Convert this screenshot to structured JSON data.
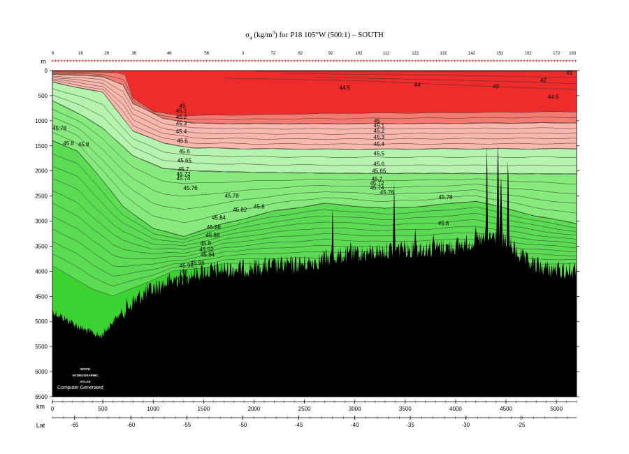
{
  "chart_data": {
    "type": "area",
    "title": "σ₄ (kg/m³) for P18 105°W (500:1) – SOUTH",
    "title_parts": {
      "sym": "σ",
      "sub": "4",
      "rest_pre": " (kg/m",
      "sup": "3",
      "rest_post": ") for P18 105°W (500:1) – SOUTH"
    },
    "xlabel": "km",
    "ylabel": "m",
    "lat_label": "Lat",
    "xlim": [
      0,
      5200
    ],
    "ylim": [
      0,
      6500
    ],
    "y_inverted": true,
    "x_ticks": [
      0,
      500,
      1000,
      1500,
      2000,
      2500,
      3000,
      3500,
      4000,
      4500,
      5000
    ],
    "y_ticks": [
      0,
      500,
      1000,
      1500,
      2000,
      2500,
      3000,
      3500,
      4000,
      4500,
      5000,
      5500,
      6000,
      6500
    ],
    "lat_ticks": [
      {
        "km": 220,
        "label": "-65"
      },
      {
        "km": 780,
        "label": "-60"
      },
      {
        "km": 1335,
        "label": "-55"
      },
      {
        "km": 1890,
        "label": "-50"
      },
      {
        "km": 2445,
        "label": "-45"
      },
      {
        "km": 3000,
        "label": "-40"
      },
      {
        "km": 3550,
        "label": "-35"
      },
      {
        "km": 4100,
        "label": "-30"
      },
      {
        "km": 4650,
        "label": "-25"
      }
    ],
    "stations": [
      {
        "km": 5,
        "label": "6"
      },
      {
        "km": 280,
        "label": "16"
      },
      {
        "km": 540,
        "label": "26"
      },
      {
        "km": 810,
        "label": "36"
      },
      {
        "km": 1160,
        "label": "46"
      },
      {
        "km": 1530,
        "label": "56"
      },
      {
        "km": 1890,
        "label": "3"
      },
      {
        "km": 2190,
        "label": "72"
      },
      {
        "km": 2460,
        "label": "82"
      },
      {
        "km": 2760,
        "label": "92"
      },
      {
        "km": 3040,
        "label": "102"
      },
      {
        "km": 3310,
        "label": "112"
      },
      {
        "km": 3600,
        "label": "122"
      },
      {
        "km": 3880,
        "label": "132"
      },
      {
        "km": 4160,
        "label": "142"
      },
      {
        "km": 4440,
        "label": "152"
      },
      {
        "km": 4720,
        "label": "162"
      },
      {
        "km": 5000,
        "label": "172"
      },
      {
        "km": 5160,
        "label": "183"
      }
    ],
    "contour_labels": [
      {
        "text": "41",
        "x": 5130,
        "y": 40
      },
      {
        "text": "42",
        "x": 4870,
        "y": 190
      },
      {
        "text": "43",
        "x": 4400,
        "y": 310
      },
      {
        "text": "44",
        "x": 3620,
        "y": 280
      },
      {
        "text": "44.5",
        "x": 2900,
        "y": 340
      },
      {
        "text": "44.5",
        "x": 4970,
        "y": 520
      },
      {
        "text": "45",
        "x": 1290,
        "y": 700
      },
      {
        "text": "45.1",
        "x": 1280,
        "y": 800
      },
      {
        "text": "45.2",
        "x": 1280,
        "y": 920
      },
      {
        "text": "45.3",
        "x": 1280,
        "y": 1050
      },
      {
        "text": "45.4",
        "x": 1280,
        "y": 1210
      },
      {
        "text": "45.5",
        "x": 1290,
        "y": 1400
      },
      {
        "text": "45.6",
        "x": 1310,
        "y": 1610
      },
      {
        "text": "45.65",
        "x": 1310,
        "y": 1790
      },
      {
        "text": "45.7",
        "x": 1300,
        "y": 1960
      },
      {
        "text": "45.72",
        "x": 1300,
        "y": 2060
      },
      {
        "text": "45.74",
        "x": 1300,
        "y": 2140
      },
      {
        "text": "45.76",
        "x": 1370,
        "y": 2340
      },
      {
        "text": "45.78",
        "x": 1780,
        "y": 2490
      },
      {
        "text": "45.8",
        "x": 2050,
        "y": 2710
      },
      {
        "text": "45.82",
        "x": 1860,
        "y": 2770
      },
      {
        "text": "45.84",
        "x": 1650,
        "y": 2930
      },
      {
        "text": "45.86",
        "x": 1600,
        "y": 3120
      },
      {
        "text": "45.88",
        "x": 1590,
        "y": 3280
      },
      {
        "text": "45.9",
        "x": 1520,
        "y": 3440
      },
      {
        "text": "45.92",
        "x": 1530,
        "y": 3560
      },
      {
        "text": "45.94",
        "x": 1540,
        "y": 3670
      },
      {
        "text": "45.96",
        "x": 1440,
        "y": 3830
      },
      {
        "text": "45.98",
        "x": 1330,
        "y": 3880
      },
      {
        "text": "46",
        "x": 1310,
        "y": 4000
      },
      {
        "text": "46.01",
        "x": 1360,
        "y": 4160
      },
      {
        "text": "46.02",
        "x": 1280,
        "y": 4140
      },
      {
        "text": "46.03",
        "x": 1300,
        "y": 4420
      },
      {
        "text": "45.78",
        "x": 70,
        "y": 1150
      },
      {
        "text": "45.8",
        "x": 160,
        "y": 1450
      },
      {
        "text": "45.8",
        "x": 310,
        "y": 1470
      },
      {
        "text": "45",
        "x": 3220,
        "y": 1000
      },
      {
        "text": "45.1",
        "x": 3240,
        "y": 1090
      },
      {
        "text": "45.2",
        "x": 3240,
        "y": 1200
      },
      {
        "text": "45.3",
        "x": 3240,
        "y": 1320
      },
      {
        "text": "45.4",
        "x": 3240,
        "y": 1460
      },
      {
        "text": "45.5",
        "x": 3240,
        "y": 1650
      },
      {
        "text": "45.6",
        "x": 3240,
        "y": 1860
      },
      {
        "text": "45.65",
        "x": 3240,
        "y": 2000
      },
      {
        "text": "45.7",
        "x": 3220,
        "y": 2160
      },
      {
        "text": "45.72",
        "x": 3220,
        "y": 2240
      },
      {
        "text": "45.74",
        "x": 3220,
        "y": 2330
      },
      {
        "text": "45.76",
        "x": 3320,
        "y": 2420
      },
      {
        "text": "45.78",
        "x": 3900,
        "y": 2520
      },
      {
        "text": "45.8",
        "x": 3880,
        "y": 3040
      }
    ],
    "fill_bands": [
      {
        "from": "surface",
        "to": 44.5,
        "color": "#ee2c2c"
      },
      {
        "from": 44.5,
        "to": 45.0,
        "color": "#f47a72"
      },
      {
        "from": 45.0,
        "to": 45.5,
        "color": "#f9b7ae"
      },
      {
        "from": 45.5,
        "to": 45.7,
        "color": "#b6f3ae"
      },
      {
        "from": 45.7,
        "to": 45.8,
        "color": "#86e97c"
      },
      {
        "from": 45.8,
        "to": 46.0,
        "color": "#5cdc52"
      },
      {
        "from": 46.0,
        "to": "bottom",
        "color": "#3bd232"
      }
    ],
    "bathymetry_color": "#000000",
    "grid": false
  },
  "watermark": {
    "line1": "WOCE",
    "line2": "HYDROGRAPHIC",
    "line3": "ATLAS",
    "caption": "Computer Generated"
  }
}
